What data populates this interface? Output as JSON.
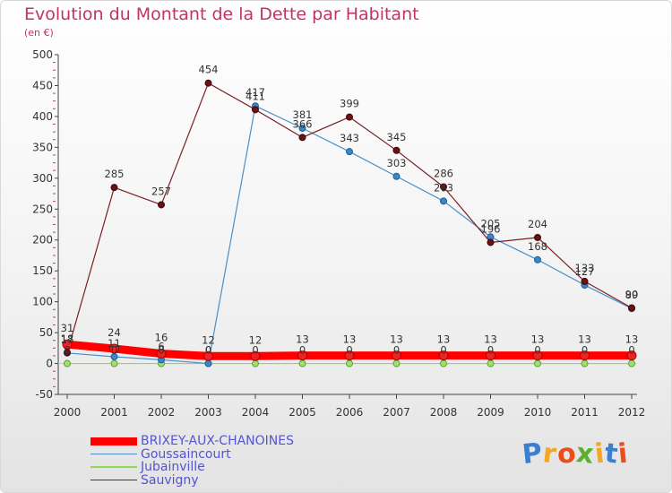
{
  "chart_data": {
    "type": "line",
    "title": "Evolution du Montant de la Dette par Habitant",
    "subtitle": "(en €)",
    "xlabel": "",
    "ylabel": "",
    "x": [
      "2000",
      "2001",
      "2002",
      "2003",
      "2004",
      "2005",
      "2006",
      "2007",
      "2008",
      "2009",
      "2010",
      "2011",
      "2012"
    ],
    "ylim": [
      -50,
      500
    ],
    "yticks": [
      -50,
      0,
      50,
      100,
      150,
      200,
      250,
      300,
      350,
      400,
      450,
      500
    ],
    "ytick_labels": [
      "-50",
      "0",
      "50",
      "100",
      "150",
      "200",
      "250",
      "300",
      "350",
      "400",
      "450",
      "500"
    ],
    "grid": false,
    "legend_position": "bottom-left",
    "series": [
      {
        "name": "BRIXEY-AUX-CHANOINES",
        "color": "#ff0000",
        "values": [
          31,
          24,
          16,
          12,
          12,
          13,
          13,
          13,
          13,
          13,
          13,
          13,
          13
        ],
        "labels": [
          "31",
          "24",
          "16",
          "12",
          "12",
          "13",
          "13",
          "13",
          "13",
          "13",
          "13",
          "13",
          "13"
        ]
      },
      {
        "name": "Goussaincourt",
        "color": "#4a90c8",
        "values": [
          17,
          11,
          6,
          0,
          417,
          381,
          343,
          303,
          263,
          205,
          168,
          127,
          89
        ],
        "labels": [
          "17",
          "11",
          "6",
          "0",
          "417",
          "381",
          "343",
          "303",
          "263",
          "205",
          "168",
          "127",
          "89"
        ]
      },
      {
        "name": "Jubainville",
        "color": "#88dd55",
        "values": [
          0,
          0,
          0,
          0,
          0,
          0,
          0,
          0,
          0,
          0,
          0,
          0,
          0
        ],
        "labels": [
          "0",
          "0",
          "0",
          "0",
          "0",
          "0",
          "0",
          "0",
          "0",
          "0",
          "0",
          "0",
          "0"
        ]
      },
      {
        "name": "Sauvigny",
        "color": "#7a1f22",
        "values": [
          18,
          285,
          257,
          454,
          411,
          366,
          399,
          345,
          286,
          196,
          204,
          133,
          90
        ],
        "labels": [
          "18",
          "285",
          "257",
          "454",
          "411",
          "366",
          "399",
          "345",
          "286",
          "196",
          "204",
          "133",
          "90"
        ]
      }
    ]
  },
  "logo": {
    "text": "Proxiti",
    "letters": [
      "P",
      "r",
      "o",
      "x",
      "i",
      "t",
      "i"
    ],
    "colors": [
      "#3a7fd0",
      "#f5a623",
      "#e94e1b",
      "#5ab030",
      "#f5a623",
      "#3a7fd0",
      "#e94e1b"
    ]
  }
}
